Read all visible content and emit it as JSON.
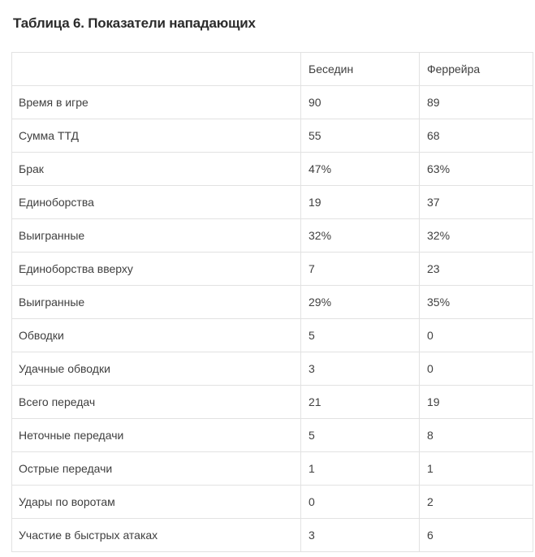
{
  "title": "Таблица 6. Показатели нападающих",
  "table": {
    "header": {
      "metric": "",
      "col1": "Беседин",
      "col2": "Феррейра"
    },
    "rows": [
      {
        "label": "Время в игре",
        "v1": "90",
        "v2": "89"
      },
      {
        "label": "Сумма ТТД",
        "v1": "55",
        "v2": "68"
      },
      {
        "label": "Брак",
        "v1": "47%",
        "v2": "63%"
      },
      {
        "label": "Единоборства",
        "v1": "19",
        "v2": "37"
      },
      {
        "label": "Выигранные",
        "v1": "32%",
        "v2": "32%"
      },
      {
        "label": "Единоборства вверху",
        "v1": "7",
        "v2": "23"
      },
      {
        "label": "Выигранные",
        "v1": "29%",
        "v2": "35%"
      },
      {
        "label": "Обводки",
        "v1": "5",
        "v2": "0"
      },
      {
        "label": "Удачные обводки",
        "v1": "3",
        "v2": "0"
      },
      {
        "label": "Всего передач",
        "v1": "21",
        "v2": "19"
      },
      {
        "label": "Неточные передачи",
        "v1": "5",
        "v2": "8"
      },
      {
        "label": "Острые передачи",
        "v1": "1",
        "v2": "1"
      },
      {
        "label": "Удары по воротам",
        "v1": "0",
        "v2": "2"
      },
      {
        "label": "Участие в быстрых атаках",
        "v1": "3",
        "v2": "6"
      }
    ]
  },
  "chart_data": {
    "type": "table",
    "title": "Таблица 6. Показатели нападающих",
    "columns": [
      "",
      "Беседин",
      "Феррейра"
    ],
    "metrics": [
      "Время в игре",
      "Сумма ТТД",
      "Брак",
      "Единоборства",
      "Выигранные",
      "Единоборства вверху",
      "Выигранные",
      "Обводки",
      "Удачные обводки",
      "Всего передач",
      "Неточные передачи",
      "Острые передачи",
      "Удары по воротам",
      "Участие в быстрых атаках"
    ],
    "series": [
      {
        "name": "Беседин",
        "values": [
          "90",
          "55",
          "47%",
          "19",
          "32%",
          "7",
          "29%",
          "5",
          "3",
          "21",
          "5",
          "1",
          "0",
          "3"
        ]
      },
      {
        "name": "Феррейра",
        "values": [
          "89",
          "68",
          "63%",
          "37",
          "32%",
          "23",
          "35%",
          "0",
          "0",
          "19",
          "8",
          "1",
          "2",
          "6"
        ]
      }
    ],
    "layout": {
      "grid": true,
      "header_row": true,
      "first_column_is_metric": true
    }
  },
  "colors": {
    "background": "#ffffff",
    "border": "#e2e2e2",
    "title_text": "#2b2b2b",
    "cell_text": "#3f3f3f"
  }
}
